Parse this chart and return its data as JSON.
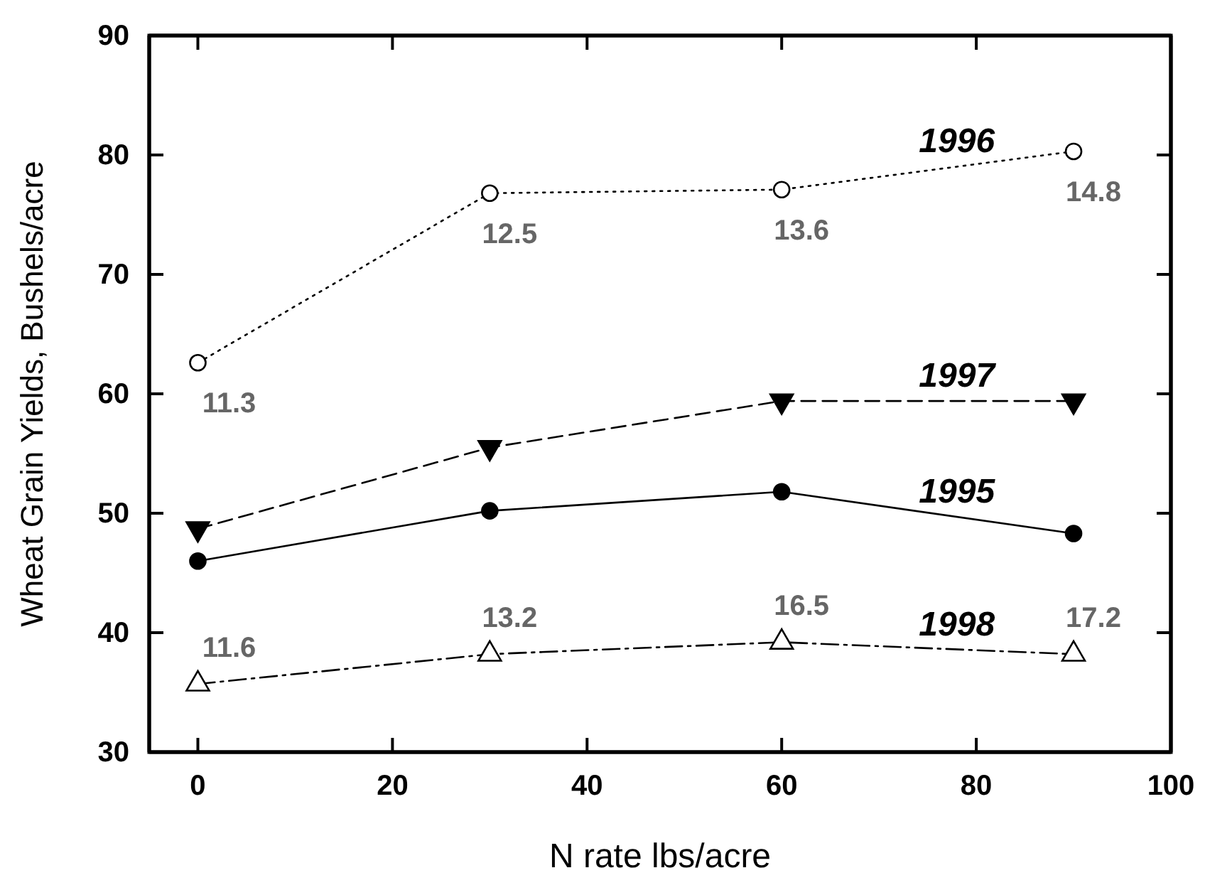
{
  "chart_data": {
    "type": "line",
    "xlabel": "N rate lbs/acre",
    "ylabel": "Wheat Grain Yields, Bushels/acre",
    "x": [
      0,
      30,
      60,
      90
    ],
    "series": [
      {
        "name": "1996",
        "color": "#000000",
        "values": [
          62.6,
          76.8,
          77.1,
          80.3
        ],
        "marker": "circle",
        "line_style": "dotted"
      },
      {
        "name": "1997",
        "color": "#000000",
        "values": [
          48.7,
          55.5,
          59.4,
          59.4
        ],
        "marker": "triangle-down",
        "line_style": "dashed"
      },
      {
        "name": "1995",
        "color": "#000000",
        "values": [
          46.0,
          50.2,
          51.8,
          48.3
        ],
        "marker": "circle",
        "line_style": "solid"
      },
      {
        "name": "1998",
        "color": "#000000",
        "values": [
          35.7,
          38.2,
          39.2,
          38.2
        ],
        "marker": "triangle",
        "line_style": "dashdot"
      }
    ],
    "annotations": [
      {
        "text": "11.3",
        "x": 0,
        "y": 62.6
      },
      {
        "text": "12.5",
        "x": 30,
        "y": 76.8
      },
      {
        "text": "13.6",
        "x": 60,
        "y": 77.1
      },
      {
        "text": "14.8",
        "x": 90,
        "y": 80.3
      },
      {
        "text": "11.6",
        "x": 0,
        "y": 35.7
      },
      {
        "text": "13.2",
        "x": 30,
        "y": 38.2
      },
      {
        "text": "16.5",
        "x": 60,
        "y": 39.2
      },
      {
        "text": "17.2",
        "x": 90,
        "y": 38.2
      }
    ],
    "xlim": [
      -5,
      100
    ],
    "xticks": [
      0,
      20,
      40,
      60,
      80,
      100
    ],
    "ylim": [
      30,
      90
    ],
    "yticks": [
      30,
      40,
      50,
      60,
      70,
      80,
      90
    ],
    "grid": false,
    "legend": false
  }
}
